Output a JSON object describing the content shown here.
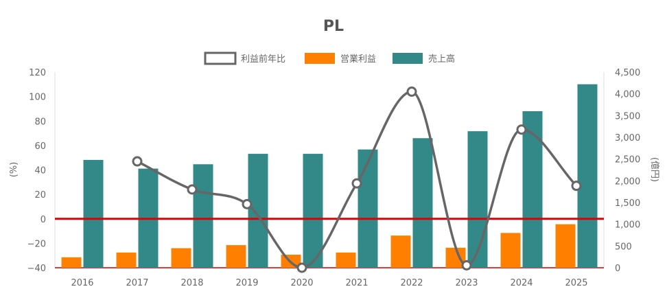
{
  "chart_data": {
    "type": "bar",
    "title": "PL",
    "categories": [
      "2016",
      "2017",
      "2018",
      "2019",
      "2020",
      "2021",
      "2022",
      "2023",
      "2024",
      "2025"
    ],
    "legend": [
      "利益前年比",
      "営業利益",
      "売上高"
    ],
    "legend_position": "top",
    "left_axis": {
      "label": "(%)",
      "range": [
        -40,
        120
      ],
      "ticks": [
        "120",
        "100",
        "80",
        "60",
        "40",
        "20",
        "0",
        "−20",
        "−40"
      ]
    },
    "right_axis": {
      "label": "(億円)",
      "range": [
        0,
        4500
      ],
      "ticks": [
        "4,500",
        "4,000",
        "3,500",
        "3,000",
        "2,500",
        "2,000",
        "1,500",
        "1,000",
        "500",
        "0"
      ]
    },
    "grid": false,
    "zero_line_color": "#e00000",
    "series": [
      {
        "name": "営業利益",
        "type": "bar",
        "axis": "right",
        "color": "#ff8000",
        "values": [
          240,
          350,
          450,
          520,
          300,
          350,
          740,
          460,
          800,
          1000
        ]
      },
      {
        "name": "売上高",
        "type": "bar",
        "axis": "right",
        "color": "#338888",
        "values": [
          2480,
          2280,
          2380,
          2620,
          2620,
          2720,
          2980,
          3140,
          3600,
          4220
        ]
      },
      {
        "name": "利益前年比",
        "type": "line",
        "axis": "left",
        "color": "#666666",
        "values": [
          null,
          47,
          24,
          12,
          -40,
          29,
          104,
          -38,
          73,
          27
        ]
      }
    ]
  }
}
